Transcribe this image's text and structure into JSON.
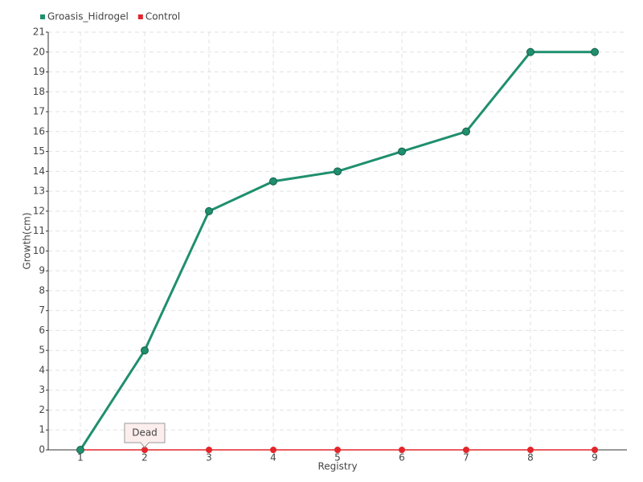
{
  "chart_data": {
    "type": "line",
    "x_label": "Registry",
    "y_label": "Growth(cm)",
    "categories": [
      "1",
      "2",
      "3",
      "4",
      "5",
      "6",
      "7",
      "8",
      "9"
    ],
    "series": [
      {
        "name": "Groasis_Hidrogel",
        "color": "#1f8f6e",
        "values": [
          0,
          5,
          12,
          13.5,
          14,
          15,
          16,
          20,
          20
        ]
      },
      {
        "name": "Control",
        "color": "#e3262b",
        "values": [
          0,
          0,
          0,
          0,
          0,
          0,
          0,
          0,
          0
        ]
      }
    ],
    "ylim": [
      0,
      21
    ],
    "yticks": [
      0,
      1,
      2,
      3,
      4,
      5,
      6,
      7,
      8,
      9,
      10,
      11,
      12,
      13,
      14,
      15,
      16,
      17,
      18,
      19,
      20,
      21
    ],
    "grid": true,
    "annotations": [
      {
        "text": "Dead",
        "category": "2",
        "series": "Control"
      }
    ]
  }
}
